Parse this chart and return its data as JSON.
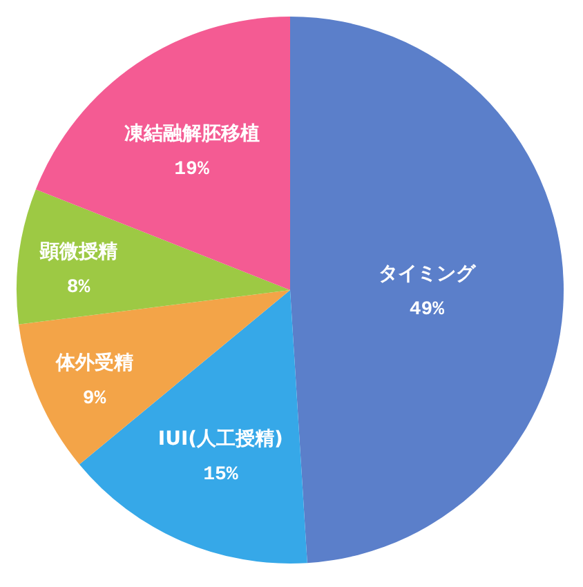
{
  "chart_data": {
    "type": "pie",
    "categories": [
      "タイミング",
      "IUI(人工授精)",
      "体外受精",
      "顕微授精",
      "凍結融解胚移植"
    ],
    "values": [
      49,
      15,
      9,
      8,
      19
    ],
    "colors": [
      "#5b7fca",
      "#36a8e8",
      "#f3a448",
      "#9dc944",
      "#f45b93"
    ],
    "value_labels": [
      "49%",
      "15%",
      "9%",
      "8%",
      "19%"
    ]
  }
}
